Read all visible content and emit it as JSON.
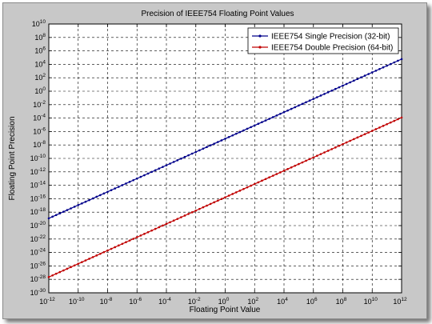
{
  "chart_data": {
    "type": "line",
    "title": "Precision of IEEE754 Floating Point Values",
    "xlabel": "Floating Point Value",
    "ylabel": "Floating Point Precision",
    "xscale": "log",
    "yscale": "log",
    "xlim": [
      1e-12,
      1000000000000.0
    ],
    "ylim": [
      1e-30,
      10000000000.0
    ],
    "grid": true,
    "legend_position": "top-right",
    "x_ticks": [
      -12,
      -10,
      -8,
      -6,
      -4,
      -2,
      0,
      2,
      4,
      6,
      8,
      10,
      12
    ],
    "y_ticks": [
      -30,
      -28,
      -26,
      -24,
      -22,
      -20,
      -18,
      -16,
      -14,
      -12,
      -10,
      -8,
      -6,
      -4,
      -2,
      0,
      2,
      4,
      6,
      8,
      10
    ],
    "tick_base": "10",
    "series": [
      {
        "name": "IEEE754 Single Precision (32-bit)",
        "color": "#00008b",
        "marker": "point",
        "x": [
          1e-12,
          1000000000000.0
        ],
        "y": [
          1.2e-19,
          60000.0
        ]
      },
      {
        "name": "IEEE754 Double Precision (64-bit)",
        "color": "#c00000",
        "marker": "point",
        "x": [
          1e-12,
          1000000000000.0
        ],
        "y": [
          2.2e-28,
          0.00012
        ]
      }
    ]
  }
}
